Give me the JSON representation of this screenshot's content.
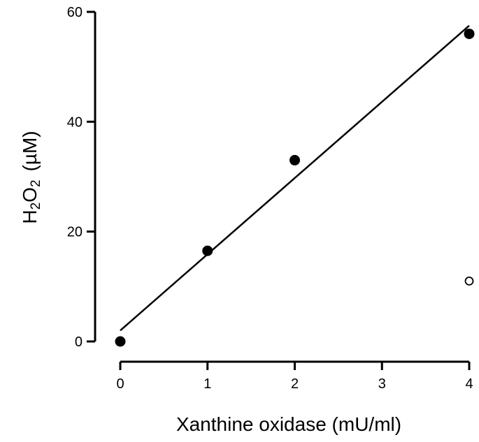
{
  "chart_data": {
    "type": "scatter",
    "xlabel": "Xanthine oxidase (mU/ml)",
    "ylabel": {
      "h": "H",
      "sub1": "2",
      "o": "O",
      "sub2": "2",
      "unit": "(µM)"
    },
    "xlim": [
      0,
      4
    ],
    "ylim": [
      0,
      60
    ],
    "x_ticks": [
      0,
      1,
      2,
      3,
      4
    ],
    "y_ticks": [
      0,
      20,
      40,
      60
    ],
    "grid": false,
    "series": [
      {
        "marker": "filled-circle",
        "points": [
          {
            "x": 0,
            "y": 0
          },
          {
            "x": 1,
            "y": 16.5
          },
          {
            "x": 2,
            "y": 33
          },
          {
            "x": 4,
            "y": 56
          }
        ]
      },
      {
        "marker": "open-circle",
        "points": [
          {
            "x": 4,
            "y": 11
          }
        ]
      }
    ],
    "fit_line": {
      "start": {
        "x": 0,
        "y": 2
      },
      "end": {
        "x": 4,
        "y": 57.5
      }
    }
  }
}
